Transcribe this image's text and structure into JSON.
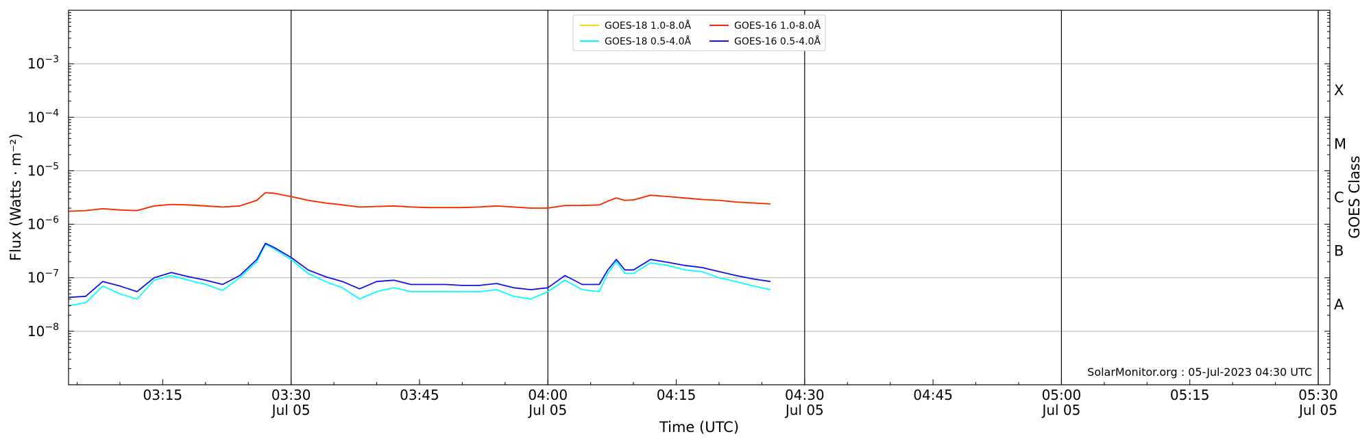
{
  "chart_data": {
    "type": "line",
    "xlabel": "Time (UTC)",
    "ylabel": "Flux (Watts · m⁻²)",
    "y_scale": "log",
    "xlim": [
      "03:04",
      "05:30"
    ],
    "ylim": [
      1e-09,
      0.01
    ],
    "grid": "horizontal at decades 1e-8 to 1e-3",
    "legend_position": "top-center",
    "x_ticks": [
      {
        "time": "03:15",
        "label": "03:15",
        "date": ""
      },
      {
        "time": "03:30",
        "label": "03:30",
        "date": "Jul 05"
      },
      {
        "time": "03:45",
        "label": "03:45",
        "date": ""
      },
      {
        "time": "04:00",
        "label": "04:00",
        "date": "Jul 05"
      },
      {
        "time": "04:15",
        "label": "04:15",
        "date": ""
      },
      {
        "time": "04:30",
        "label": "04:30",
        "date": "Jul 05"
      },
      {
        "time": "04:45",
        "label": "04:45",
        "date": ""
      },
      {
        "time": "05:00",
        "label": "05:00",
        "date": "Jul 05"
      },
      {
        "time": "05:15",
        "label": "05:15",
        "date": ""
      },
      {
        "time": "05:30",
        "label": "05:30",
        "date": "Jul 05"
      }
    ],
    "day_lines": [
      "03:30",
      "04:00",
      "04:30",
      "05:00",
      "05:30"
    ],
    "y_ticks": [
      {
        "value": 1e-08,
        "base": "10",
        "exp": "−8"
      },
      {
        "value": 1e-07,
        "base": "10",
        "exp": "−7"
      },
      {
        "value": 1e-06,
        "base": "10",
        "exp": "−6"
      },
      {
        "value": 1e-05,
        "base": "10",
        "exp": "−5"
      },
      {
        "value": 0.0001,
        "base": "10",
        "exp": "−4"
      },
      {
        "value": 0.001,
        "base": "10",
        "exp": "−3"
      }
    ],
    "secondary_axis": {
      "label": "GOES Class",
      "classes": [
        {
          "name": "A",
          "value": 3.16e-08
        },
        {
          "name": "B",
          "value": 3.16e-07
        },
        {
          "name": "C",
          "value": 3.16e-06
        },
        {
          "name": "M",
          "value": 3.16e-05
        },
        {
          "name": "X",
          "value": 0.000316
        }
      ]
    },
    "x": [
      "03:04",
      "03:06",
      "03:08",
      "03:10",
      "03:12",
      "03:14",
      "03:16",
      "03:18",
      "03:20",
      "03:22",
      "03:24",
      "03:26",
      "03:27",
      "03:28",
      "03:30",
      "03:32",
      "03:34",
      "03:36",
      "03:38",
      "03:40",
      "03:42",
      "03:44",
      "03:46",
      "03:48",
      "03:50",
      "03:52",
      "03:54",
      "03:56",
      "03:58",
      "04:00",
      "04:02",
      "04:04",
      "04:06",
      "04:07",
      "04:08",
      "04:09",
      "04:10",
      "04:12",
      "04:14",
      "04:16",
      "04:18",
      "04:20",
      "04:22",
      "04:24",
      "04:26"
    ],
    "series": [
      {
        "name": "GOES-18 1.0-8.0Å",
        "color": "#ffd700",
        "values": [
          1.75e-06,
          1.8e-06,
          1.95e-06,
          1.85e-06,
          1.8e-06,
          2.2e-06,
          2.35e-06,
          2.3e-06,
          2.2e-06,
          2.1e-06,
          2.2e-06,
          2.8e-06,
          3.9e-06,
          3.8e-06,
          3.3e-06,
          2.8e-06,
          2.5e-06,
          2.3e-06,
          2.1e-06,
          2.15e-06,
          2.2e-06,
          2.1e-06,
          2.05e-06,
          2.05e-06,
          2.05e-06,
          2.1e-06,
          2.2e-06,
          2.1e-06,
          2e-06,
          2e-06,
          2.25e-06,
          2.25e-06,
          2.3e-06,
          2.7e-06,
          3.1e-06,
          2.8e-06,
          2.85e-06,
          3.5e-06,
          3.3e-06,
          3.1e-06,
          2.9e-06,
          2.8e-06,
          2.6e-06,
          2.5e-06,
          2.4e-06
        ]
      },
      {
        "name": "GOES-16 1.0-8.0Å",
        "color": "#ff2200",
        "values": [
          1.75e-06,
          1.8e-06,
          1.95e-06,
          1.85e-06,
          1.8e-06,
          2.2e-06,
          2.35e-06,
          2.3e-06,
          2.2e-06,
          2.1e-06,
          2.2e-06,
          2.8e-06,
          3.9e-06,
          3.8e-06,
          3.3e-06,
          2.8e-06,
          2.5e-06,
          2.3e-06,
          2.1e-06,
          2.15e-06,
          2.2e-06,
          2.1e-06,
          2.05e-06,
          2.05e-06,
          2.05e-06,
          2.1e-06,
          2.2e-06,
          2.1e-06,
          2e-06,
          2e-06,
          2.25e-06,
          2.25e-06,
          2.3e-06,
          2.7e-06,
          3.1e-06,
          2.8e-06,
          2.85e-06,
          3.5e-06,
          3.3e-06,
          3.1e-06,
          2.9e-06,
          2.8e-06,
          2.6e-06,
          2.5e-06,
          2.4e-06
        ]
      },
      {
        "name": "GOES-18 0.5-4.0Å",
        "color": "#00ffff",
        "values": [
          3e-08,
          3.4e-08,
          7e-08,
          5e-08,
          4e-08,
          9e-08,
          1.1e-07,
          9e-08,
          7.5e-08,
          5.8e-08,
          1e-07,
          2e-07,
          4.2e-07,
          3.5e-07,
          2.2e-07,
          1.2e-07,
          8.5e-08,
          6.5e-08,
          4e-08,
          5.5e-08,
          6.5e-08,
          5.5e-08,
          5.5e-08,
          5.5e-08,
          5.5e-08,
          5.5e-08,
          6e-08,
          4.5e-08,
          4e-08,
          5.5e-08,
          9e-08,
          6e-08,
          5.5e-08,
          1.2e-07,
          2e-07,
          1.2e-07,
          1.2e-07,
          1.9e-07,
          1.7e-07,
          1.4e-07,
          1.3e-07,
          1e-07,
          8.5e-08,
          7e-08,
          6e-08
        ]
      },
      {
        "name": "GOES-16 0.5-4.0Å",
        "color": "#1010ee",
        "values": [
          4.3e-08,
          4.5e-08,
          8.5e-08,
          7e-08,
          5.5e-08,
          1e-07,
          1.25e-07,
          1.05e-07,
          9e-08,
          7.5e-08,
          1.1e-07,
          2.2e-07,
          4.4e-07,
          3.7e-07,
          2.4e-07,
          1.4e-07,
          1.05e-07,
          8.5e-08,
          6.2e-08,
          8.5e-08,
          9e-08,
          7.5e-08,
          7.5e-08,
          7.5e-08,
          7.2e-08,
          7.2e-08,
          7.8e-08,
          6.5e-08,
          6e-08,
          6.5e-08,
          1.1e-07,
          7.5e-08,
          7.5e-08,
          1.4e-07,
          2.2e-07,
          1.4e-07,
          1.4e-07,
          2.2e-07,
          1.95e-07,
          1.7e-07,
          1.55e-07,
          1.3e-07,
          1.1e-07,
          9.5e-08,
          8.5e-08
        ]
      }
    ],
    "legend": [
      {
        "series": 0,
        "label": "GOES-18 1.0-8.0Å"
      },
      {
        "series": 2,
        "label": "GOES-18 0.5-4.0Å"
      },
      {
        "series": 1,
        "label": "GOES-16 1.0-8.0Å"
      },
      {
        "series": 3,
        "label": "GOES-16 0.5-4.0Å"
      }
    ],
    "credit": "SolarMonitor.org : 05-Jul-2023 04:30 UTC"
  }
}
